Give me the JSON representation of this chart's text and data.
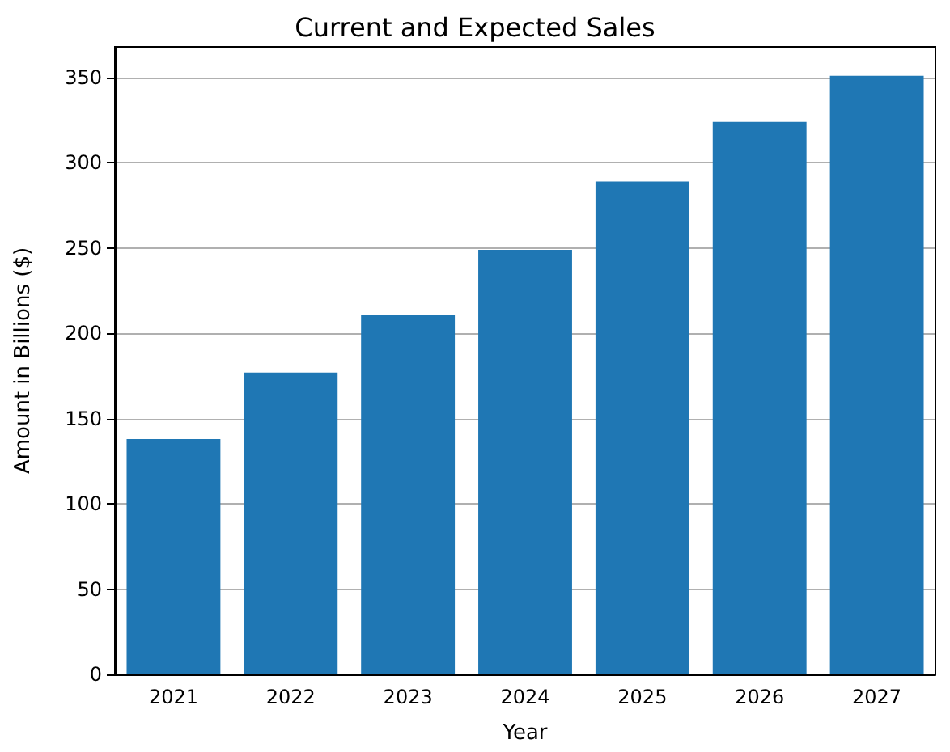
{
  "chart_data": {
    "type": "bar",
    "title": "Current and Expected Sales",
    "xlabel": "Year",
    "ylabel": "Amount in Billions ($)",
    "categories": [
      "2021",
      "2022",
      "2023",
      "2024",
      "2025",
      "2026",
      "2027"
    ],
    "values": [
      138,
      177,
      211,
      249,
      289,
      324,
      351
    ],
    "color": "#1f77b4",
    "ylim": [
      0,
      368
    ],
    "yticks": [
      0,
      50,
      100,
      150,
      200,
      250,
      300,
      350
    ],
    "grid": "y"
  }
}
